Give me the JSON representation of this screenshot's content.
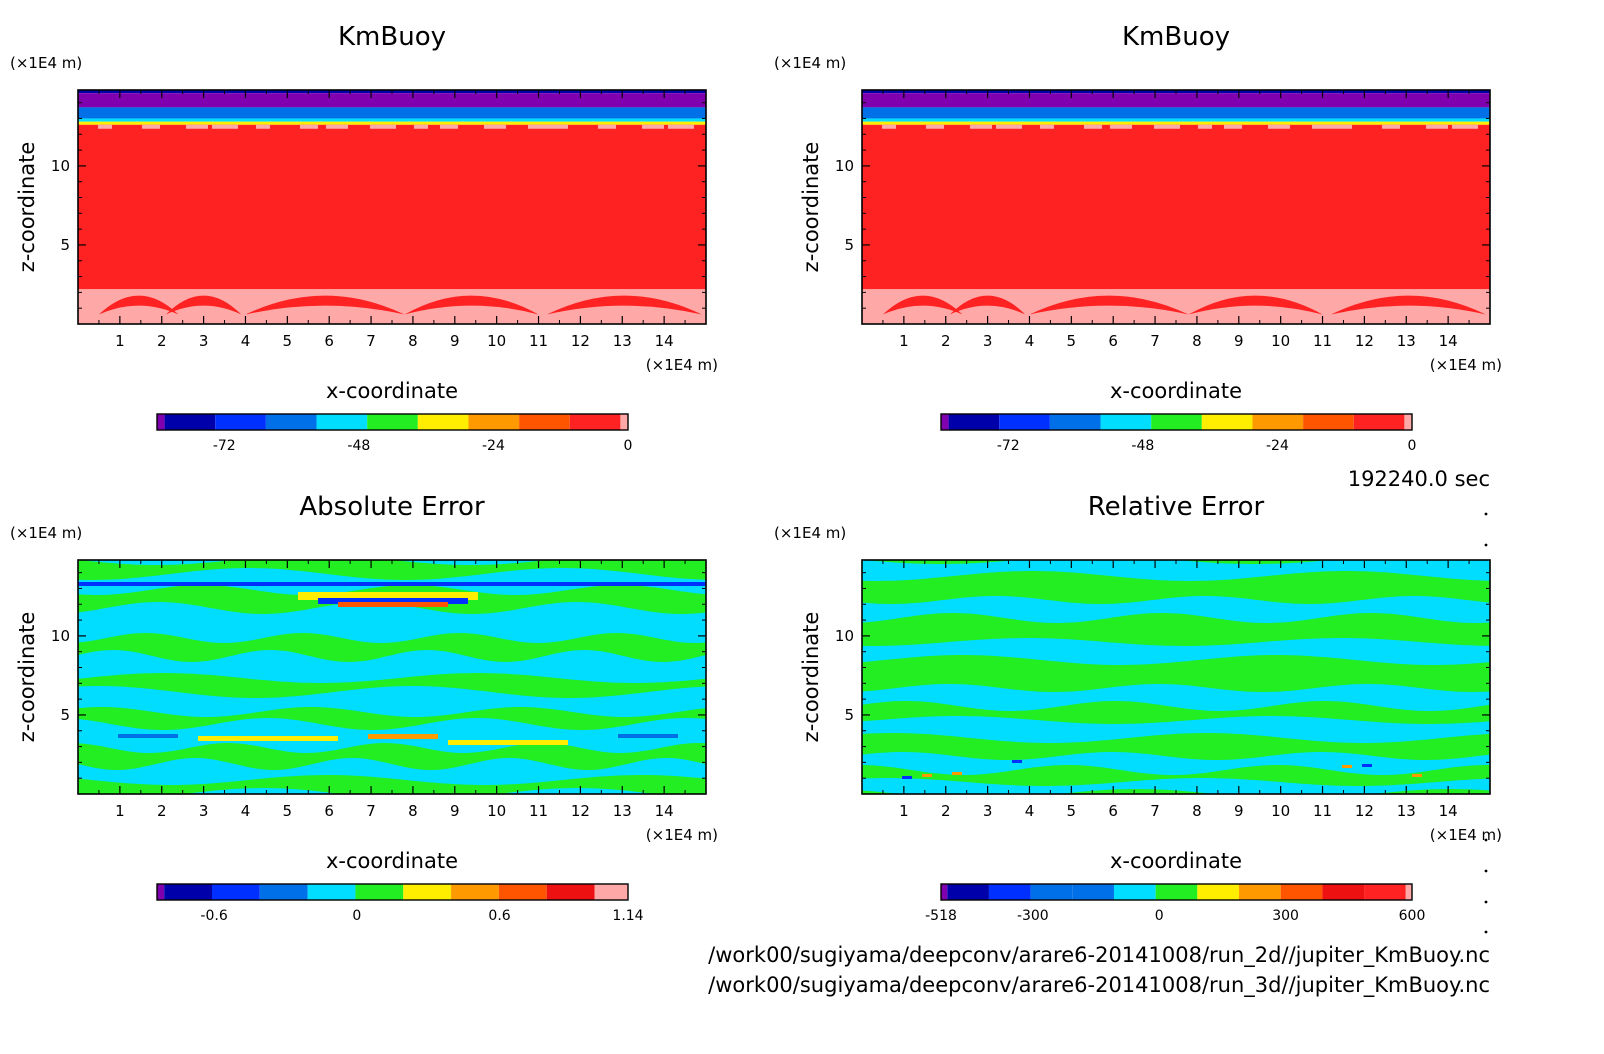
{
  "timestamp": "192240.0 sec",
  "file_paths": [
    "/work00/sugiyama/deepconv/arare6-20141008/run_2d//jupiter_KmBuoy.nc",
    "/work00/sugiyama/deepconv/arare6-20141008/run_3d//jupiter_KmBuoy.nc"
  ],
  "colors": {
    "red": "#ff2222",
    "pink": "#ffa8a8",
    "purple": "#8000b0",
    "navy": "#0000aa",
    "blue": "#0030ff",
    "mid_blue": "#0070e8",
    "cyan": "#00ddff",
    "green": "#22ee22",
    "yellow": "#ffee00",
    "orange": "#ff9900",
    "red_orange": "#ff5500",
    "deep_red": "#ee1111"
  },
  "chart_data": [
    {
      "type": "heatmap",
      "title": "KmBuoy",
      "xlabel": "x-coordinate",
      "ylabel": "z-coordinate",
      "x_unit": "(×1E4 m)",
      "y_unit": "(×1E4 m)",
      "x_ticks": [
        "1",
        "2",
        "3",
        "4",
        "5",
        "6",
        "7",
        "8",
        "9",
        "10",
        "11",
        "12",
        "13",
        "14"
      ],
      "y_ticks": [
        "5",
        "10"
      ],
      "xlim": [
        0,
        15
      ],
      "ylim": [
        0,
        14.8
      ],
      "colorbar": {
        "labels": [
          "-72",
          "-48",
          "-24",
          "0"
        ],
        "label_values": [
          -72,
          -48,
          -24,
          0
        ],
        "range": [
          -84,
          0
        ],
        "colors": [
          "#8000b0",
          "#0000aa",
          "#0030ff",
          "#0070e8",
          "#00ddff",
          "#22ee22",
          "#ffee00",
          "#ff9900",
          "#ff5500",
          "#ff2222",
          "#ffa8a8"
        ]
      },
      "field": [
        {
          "z": [
            14.6,
            14.8
          ],
          "value": -78,
          "color": "#0000aa"
        },
        {
          "z": [
            13.7,
            14.6
          ],
          "value": -82,
          "color": "#8000b0"
        },
        {
          "z": [
            13.0,
            13.7
          ],
          "value": -60,
          "color": "#0070e8"
        },
        {
          "z": [
            12.8,
            13.0
          ],
          "value": -45,
          "color": "#00ddff"
        },
        {
          "z": [
            12.6,
            12.8
          ],
          "value": -20,
          "color": "#ffee00"
        },
        {
          "z": [
            2.4,
            12.6
          ],
          "value": -3,
          "color": "#ff2222"
        },
        {
          "z": [
            0,
            2.4
          ],
          "value": 0.5,
          "color": "#ffa8a8"
        }
      ]
    },
    {
      "type": "heatmap",
      "title": "KmBuoy",
      "xlabel": "x-coordinate",
      "ylabel": "z-coordinate",
      "x_unit": "(×1E4 m)",
      "y_unit": "(×1E4 m)",
      "x_ticks": [
        "1",
        "2",
        "3",
        "4",
        "5",
        "6",
        "7",
        "8",
        "9",
        "10",
        "11",
        "12",
        "13",
        "14"
      ],
      "y_ticks": [
        "5",
        "10"
      ],
      "xlim": [
        0,
        15
      ],
      "ylim": [
        0,
        14.8
      ],
      "colorbar": {
        "labels": [
          "-72",
          "-48",
          "-24",
          "0"
        ],
        "label_values": [
          -72,
          -48,
          -24,
          0
        ],
        "range": [
          -84,
          0
        ],
        "colors": [
          "#8000b0",
          "#0000aa",
          "#0030ff",
          "#0070e8",
          "#00ddff",
          "#22ee22",
          "#ffee00",
          "#ff9900",
          "#ff5500",
          "#ff2222",
          "#ffa8a8"
        ]
      },
      "field": [
        {
          "z": [
            14.6,
            14.8
          ],
          "value": -78,
          "color": "#0000aa"
        },
        {
          "z": [
            13.7,
            14.6
          ],
          "value": -82,
          "color": "#8000b0"
        },
        {
          "z": [
            13.0,
            13.7
          ],
          "value": -60,
          "color": "#0070e8"
        },
        {
          "z": [
            12.8,
            13.0
          ],
          "value": -45,
          "color": "#00ddff"
        },
        {
          "z": [
            12.6,
            12.8
          ],
          "value": -20,
          "color": "#ffee00"
        },
        {
          "z": [
            2.4,
            12.6
          ],
          "value": -3,
          "color": "#ff2222"
        },
        {
          "z": [
            0,
            2.4
          ],
          "value": 0.5,
          "color": "#ffa8a8"
        }
      ]
    },
    {
      "type": "heatmap",
      "title": "Absolute Error",
      "xlabel": "x-coordinate",
      "ylabel": "z-coordinate",
      "x_unit": "(×1E4 m)",
      "y_unit": "(×1E4 m)",
      "x_ticks": [
        "1",
        "2",
        "3",
        "4",
        "5",
        "6",
        "7",
        "8",
        "9",
        "10",
        "11",
        "12",
        "13",
        "14"
      ],
      "y_ticks": [
        "5",
        "10"
      ],
      "xlim": [
        0,
        15
      ],
      "ylim": [
        0,
        14.8
      ],
      "colorbar": {
        "labels": [
          "-0.6",
          "0",
          "0.6",
          "1.14"
        ],
        "label_values": [
          -0.6,
          0,
          0.6,
          1.14
        ],
        "range": [
          -0.84,
          1.14
        ],
        "colors": [
          "#8000b0",
          "#0000aa",
          "#0030ff",
          "#0070e8",
          "#00ddff",
          "#22ee22",
          "#ffee00",
          "#ff9900",
          "#ff5500",
          "#ee1111",
          "#ffa8a8"
        ]
      },
      "field_pattern": "alternating horizontal bands of near-zero error (green/cyan) with strong anomalies near z=13 and z=3.5"
    },
    {
      "type": "heatmap",
      "title": "Relative Error",
      "xlabel": "x-coordinate",
      "ylabel": "z-coordinate",
      "x_unit": "(×1E4 m)",
      "y_unit": "(×1E4 m)",
      "x_ticks": [
        "1",
        "2",
        "3",
        "4",
        "5",
        "6",
        "7",
        "8",
        "9",
        "10",
        "11",
        "12",
        "13",
        "14"
      ],
      "y_ticks": [
        "5",
        "10"
      ],
      "xlim": [
        0,
        15
      ],
      "ylim": [
        0,
        14.8
      ],
      "colorbar": {
        "labels": [
          "-518",
          "-300",
          "0",
          "300",
          "600"
        ],
        "label_values": [
          -518,
          -300,
          0,
          300,
          600
        ],
        "range": [
          -518,
          600
        ],
        "colors": [
          "#8000b0",
          "#0000aa",
          "#0030ff",
          "#0070e8",
          "#0070e8",
          "#00ddff",
          "#22ee22",
          "#ffee00",
          "#ff9900",
          "#ff5500",
          "#ee1111",
          "#ff2222",
          "#ffa8a8"
        ]
      },
      "field_pattern": "alternating horizontal bands of green and cyan with small anomalies near the bottom"
    }
  ]
}
